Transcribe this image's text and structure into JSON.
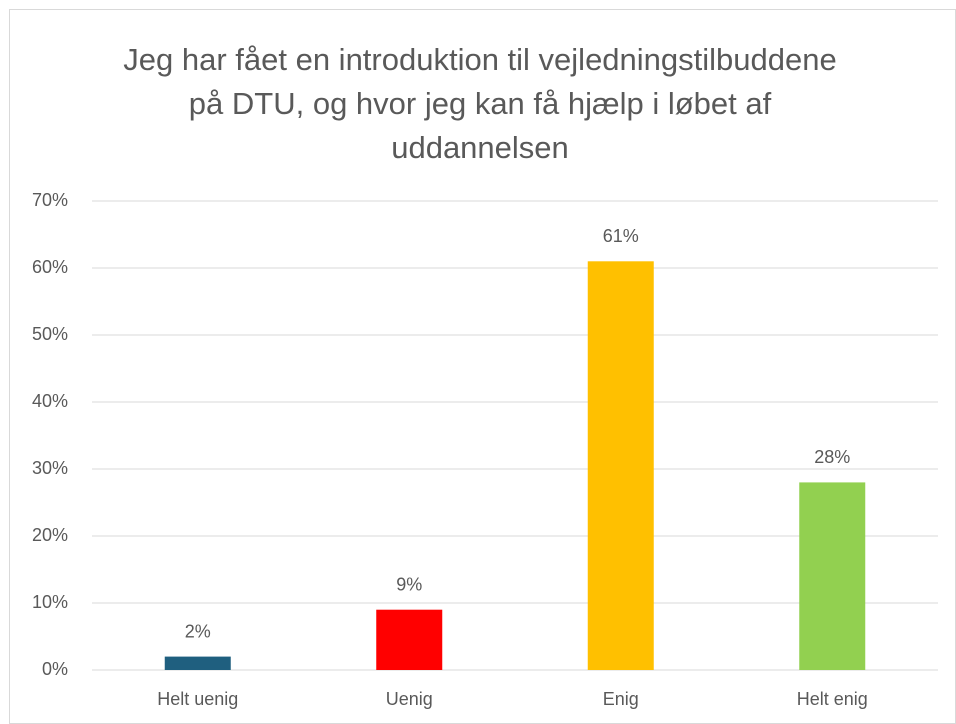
{
  "chart_data": {
    "type": "bar",
    "title": "Jeg har fået en introduktion til vejledningstilbuddene på DTU, og hvor jeg kan få hjælp i løbet af uddannelsen",
    "categories": [
      "Helt uenig",
      "Uenig",
      "Enig",
      "Helt enig"
    ],
    "values": [
      2,
      9,
      61,
      28
    ],
    "value_labels": [
      "2%",
      "9%",
      "61%",
      "28%"
    ],
    "colors": [
      "#1f5f7f",
      "#ff0000",
      "#ffc000",
      "#92d050"
    ],
    "ylim": [
      0,
      70
    ],
    "yticks": [
      {
        "value": 0,
        "label": "0%"
      },
      {
        "value": 10,
        "label": "10%"
      },
      {
        "value": 20,
        "label": "20%"
      },
      {
        "value": 30,
        "label": "30%"
      },
      {
        "value": 40,
        "label": "40%"
      },
      {
        "value": 50,
        "label": "50%"
      },
      {
        "value": 60,
        "label": "60%"
      },
      {
        "value": 70,
        "label": "70%"
      }
    ],
    "grid": true
  }
}
